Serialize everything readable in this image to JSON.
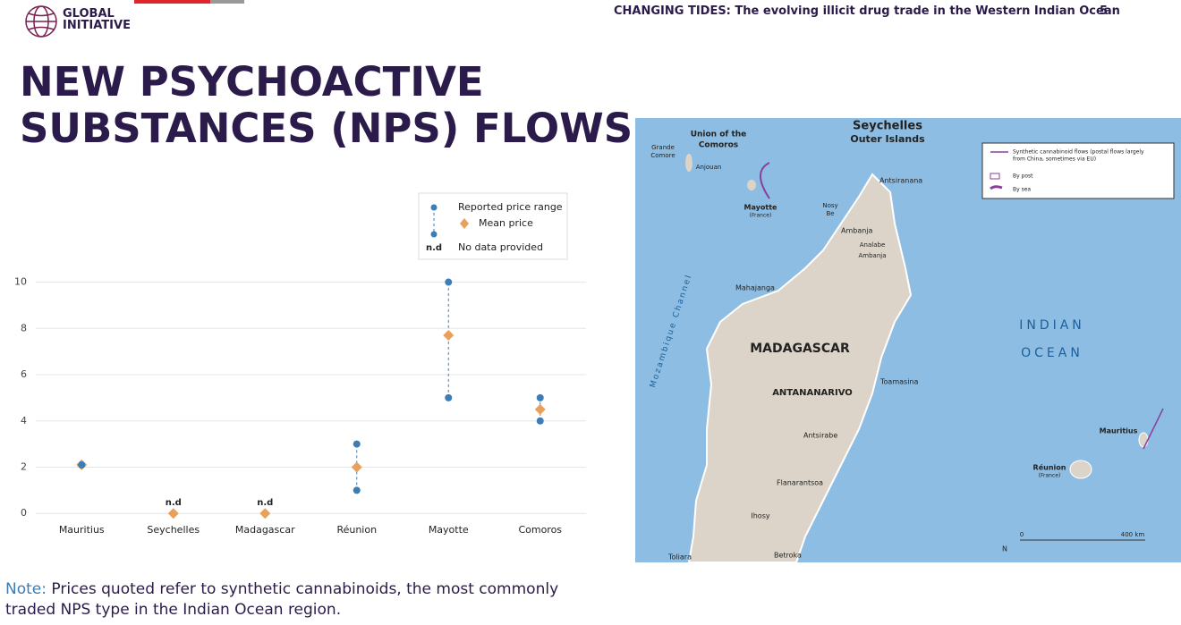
{
  "header": {
    "logo": [
      "GLOBAL",
      "INITIATIVE"
    ],
    "running_title": "CHANGING TIDES: The evolving illicit drug trade in the Western Indian Ocean",
    "page_number": "5"
  },
  "title": [
    "NEW PSYCHOACTIVE",
    "SUBSTANCES (NPS) FLOWS"
  ],
  "chart_data": {
    "type": "range-dot",
    "categories": [
      "Mauritius",
      "Seychelles",
      "Madagascar",
      "Réunion",
      "Mayotte",
      "Comoros"
    ],
    "series": [
      {
        "name": "Reported price range",
        "color": "#3b7db4",
        "low": [
          2.1,
          null,
          null,
          1,
          5,
          4
        ],
        "high": [
          2.1,
          null,
          null,
          3,
          10,
          5
        ]
      },
      {
        "name": "Mean price",
        "color": "#e8a05a",
        "values": [
          2.1,
          0,
          0,
          2,
          7.7,
          4.5
        ],
        "value_labels": [
          null,
          "n.d",
          "n.d",
          null,
          null,
          null
        ]
      }
    ],
    "legend_note": {
      "symbol": "n.d",
      "label": "No data provided"
    },
    "ylim": [
      -0.3,
      10.6
    ],
    "yticks": [
      0,
      2,
      4,
      6,
      8,
      10
    ],
    "grid": true,
    "legend": "upper right"
  },
  "note": {
    "lead": "Note:",
    "text": [
      "Prices quoted refer to synthetic cannabinoids, the most commonly",
      "traded NPS type in the Indian Ocean region."
    ]
  },
  "map": {
    "labels": [
      "Seychelles",
      "Outer Islands",
      "Union of the",
      "Comoros",
      "Grande",
      "Comore",
      "Anjouan",
      "Mayotte",
      "(France)",
      "Nosy",
      "Be",
      "Antsiranana",
      "Ambanja",
      "Analabe",
      "Ambanja",
      "Mahajanga",
      "Mozambique Channel",
      "MADAGASCAR",
      "Toamasina",
      "ANTANANARIVO",
      "Antsirabe",
      "Flanarantsoa",
      "Ihosy",
      "Betroka",
      "Toliara",
      "INDIAN",
      "OCEAN",
      "Mauritius",
      "Réunion",
      "(France)",
      "N",
      "0",
      "400 km"
    ],
    "legend": [
      "Synthetic cannabinoid flows (postal flows largely",
      "from China, sometimes via EU)",
      "By post",
      "By sea"
    ]
  }
}
